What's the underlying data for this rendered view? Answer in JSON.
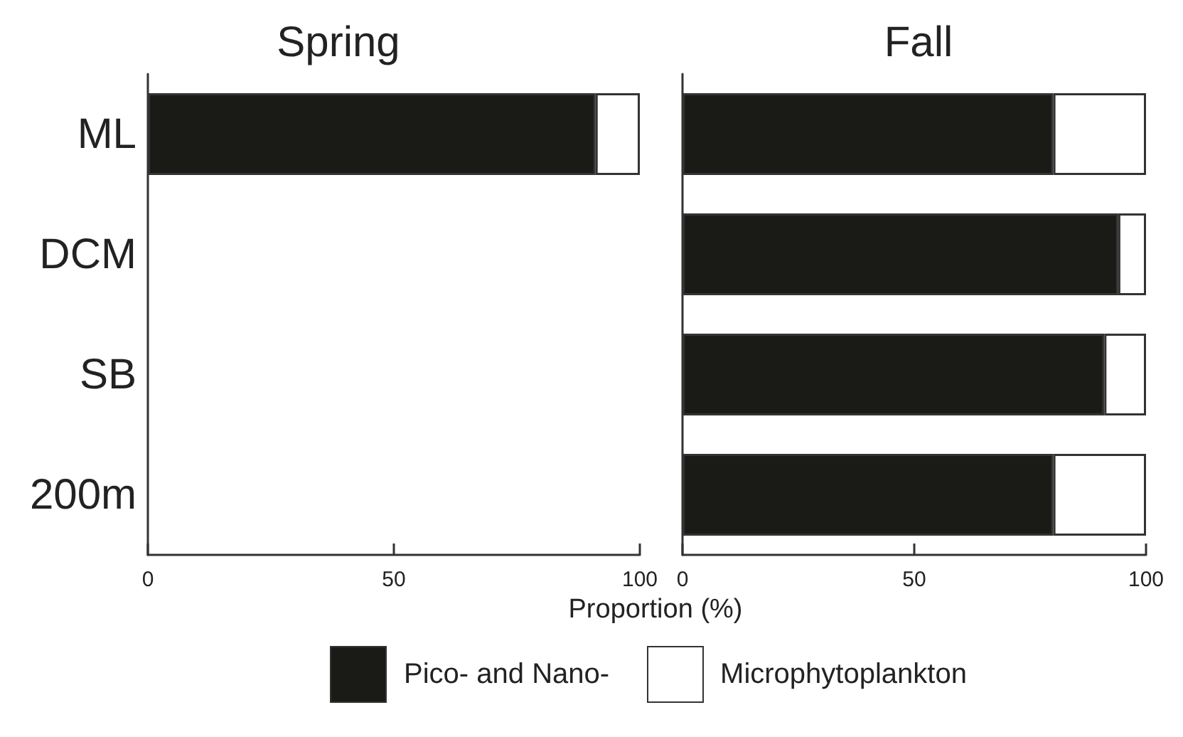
{
  "chart_data": [
    {
      "type": "bar",
      "title": "Spring",
      "orientation": "horizontal",
      "stacked": true,
      "categories": [
        "ML",
        "DCM",
        "SB",
        "200m"
      ],
      "xlabel": "Proportion (%)",
      "xlim": [
        0,
        100
      ],
      "xticks": [
        0,
        50,
        100
      ],
      "grid": false,
      "legend": "bottom",
      "series": [
        {
          "name": "Pico- and Nano-",
          "color": "#1a1a17",
          "values": [
            91,
            null,
            null,
            null
          ]
        },
        {
          "name": "Microphytoplankton",
          "color": "#ffffff",
          "values": [
            9,
            null,
            null,
            null
          ]
        }
      ]
    },
    {
      "type": "bar",
      "title": "Fall",
      "orientation": "horizontal",
      "stacked": true,
      "categories": [
        "ML",
        "DCM",
        "SB",
        "200m"
      ],
      "xlim": [
        0,
        100
      ],
      "xticks": [
        0,
        50,
        100
      ],
      "grid": false,
      "legend": "bottom",
      "tick_labels": "x",
      "series": [
        {
          "name": "Pico- and Nano-",
          "color": "#1a1a17",
          "values": [
            80,
            94,
            91,
            80
          ]
        },
        {
          "name": "Microphytoplankton",
          "color": "#ffffff",
          "values": [
            20,
            6,
            9,
            20
          ]
        }
      ]
    }
  ]
}
